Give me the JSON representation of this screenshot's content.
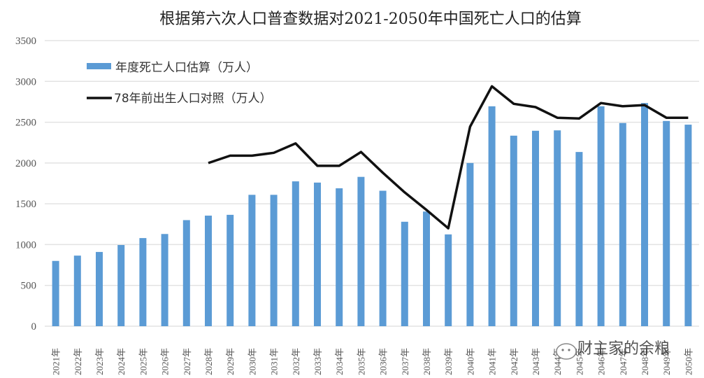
{
  "chart_data": {
    "type": "bar",
    "title": "根据第六次人口普查数据对2021-2050年中国死亡人口的估算",
    "xlabel": "",
    "ylabel": "",
    "ylim": [
      0,
      3500
    ],
    "yticks": [
      0,
      500,
      1000,
      1500,
      2000,
      2500,
      3000,
      3500
    ],
    "grid": true,
    "legend_position": "top-left",
    "categories": [
      "2021年",
      "2022年",
      "2023年",
      "2024年",
      "2025年",
      "2026年",
      "2027年",
      "2028年",
      "2029年",
      "2030年",
      "2031年",
      "2032年",
      "2033年",
      "2034年",
      "2035年",
      "2036年",
      "2037年",
      "2038年",
      "2039年",
      "2040年",
      "2041年",
      "2042年",
      "2043年",
      "2044年",
      "2045年",
      "2046年",
      "2047年",
      "2048年",
      "2049年",
      "2050年"
    ],
    "series": [
      {
        "name": "年度死亡人口估算（万人）",
        "type": "bar",
        "color": "#5b9bd5",
        "values": [
          800,
          865,
          910,
          995,
          1080,
          1130,
          1300,
          1355,
          1365,
          1610,
          1610,
          1775,
          1760,
          1690,
          1830,
          1660,
          1280,
          1405,
          1125,
          2000,
          2695,
          2335,
          2395,
          2400,
          2135,
          2695,
          2490,
          2735,
          2515,
          2470
        ]
      },
      {
        "name": "78年前出生人口对照（万人）",
        "type": "line",
        "color": "#111111",
        "values": [
          null,
          null,
          null,
          null,
          null,
          null,
          null,
          2000,
          2090,
          2090,
          2125,
          2240,
          1965,
          1965,
          2135,
          1880,
          1640,
          1425,
          1200,
          2445,
          2940,
          2725,
          2685,
          2555,
          2545,
          2735,
          2695,
          2710,
          2555,
          2555
        ]
      }
    ]
  },
  "watermark": {
    "icon": "wechat-icon",
    "text": "财主家的余粮"
  }
}
